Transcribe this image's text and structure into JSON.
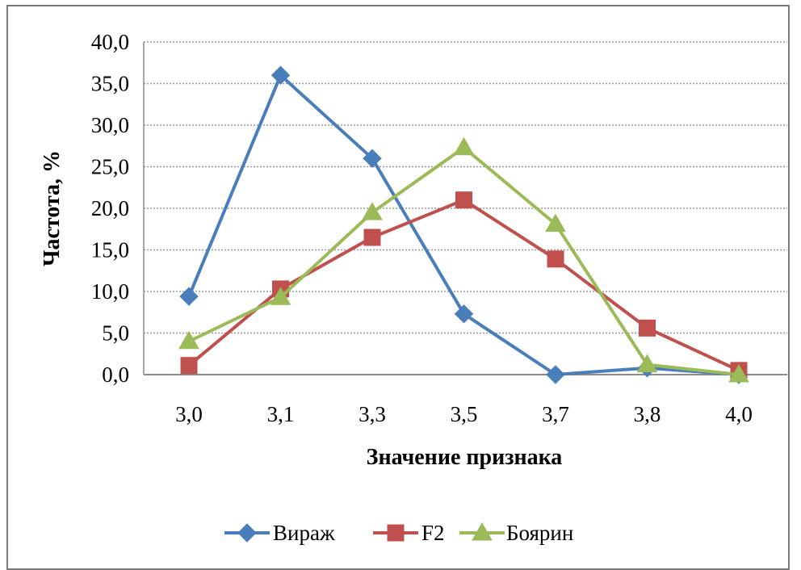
{
  "chart_data": {
    "type": "line",
    "title": "",
    "xlabel": "Значение признака",
    "ylabel": "Частота, %",
    "categories": [
      "3,0",
      "3,1",
      "3,3",
      "3,5",
      "3,7",
      "3,8",
      "4,0"
    ],
    "y_ticks": [
      "0,0",
      "5,0",
      "10,0",
      "15,0",
      "20,0",
      "25,0",
      "30,0",
      "35,0",
      "40,0"
    ],
    "ylim": [
      0,
      40
    ],
    "grid": true,
    "legend_position": "bottom",
    "series": [
      {
        "name": "Вираж",
        "color": "#4a7ebb",
        "marker": "diamond",
        "values": [
          9.4,
          36.0,
          26.0,
          7.3,
          0.0,
          0.8,
          0.0
        ]
      },
      {
        "name": "F2",
        "color": "#c0504d",
        "marker": "square",
        "values": [
          1.1,
          10.3,
          16.5,
          21.0,
          13.9,
          5.6,
          0.5
        ]
      },
      {
        "name": "Боярин",
        "color": "#9bbb59",
        "marker": "triangle",
        "values": [
          4.0,
          9.3,
          19.5,
          27.3,
          18.1,
          1.2,
          0.0
        ]
      }
    ]
  }
}
